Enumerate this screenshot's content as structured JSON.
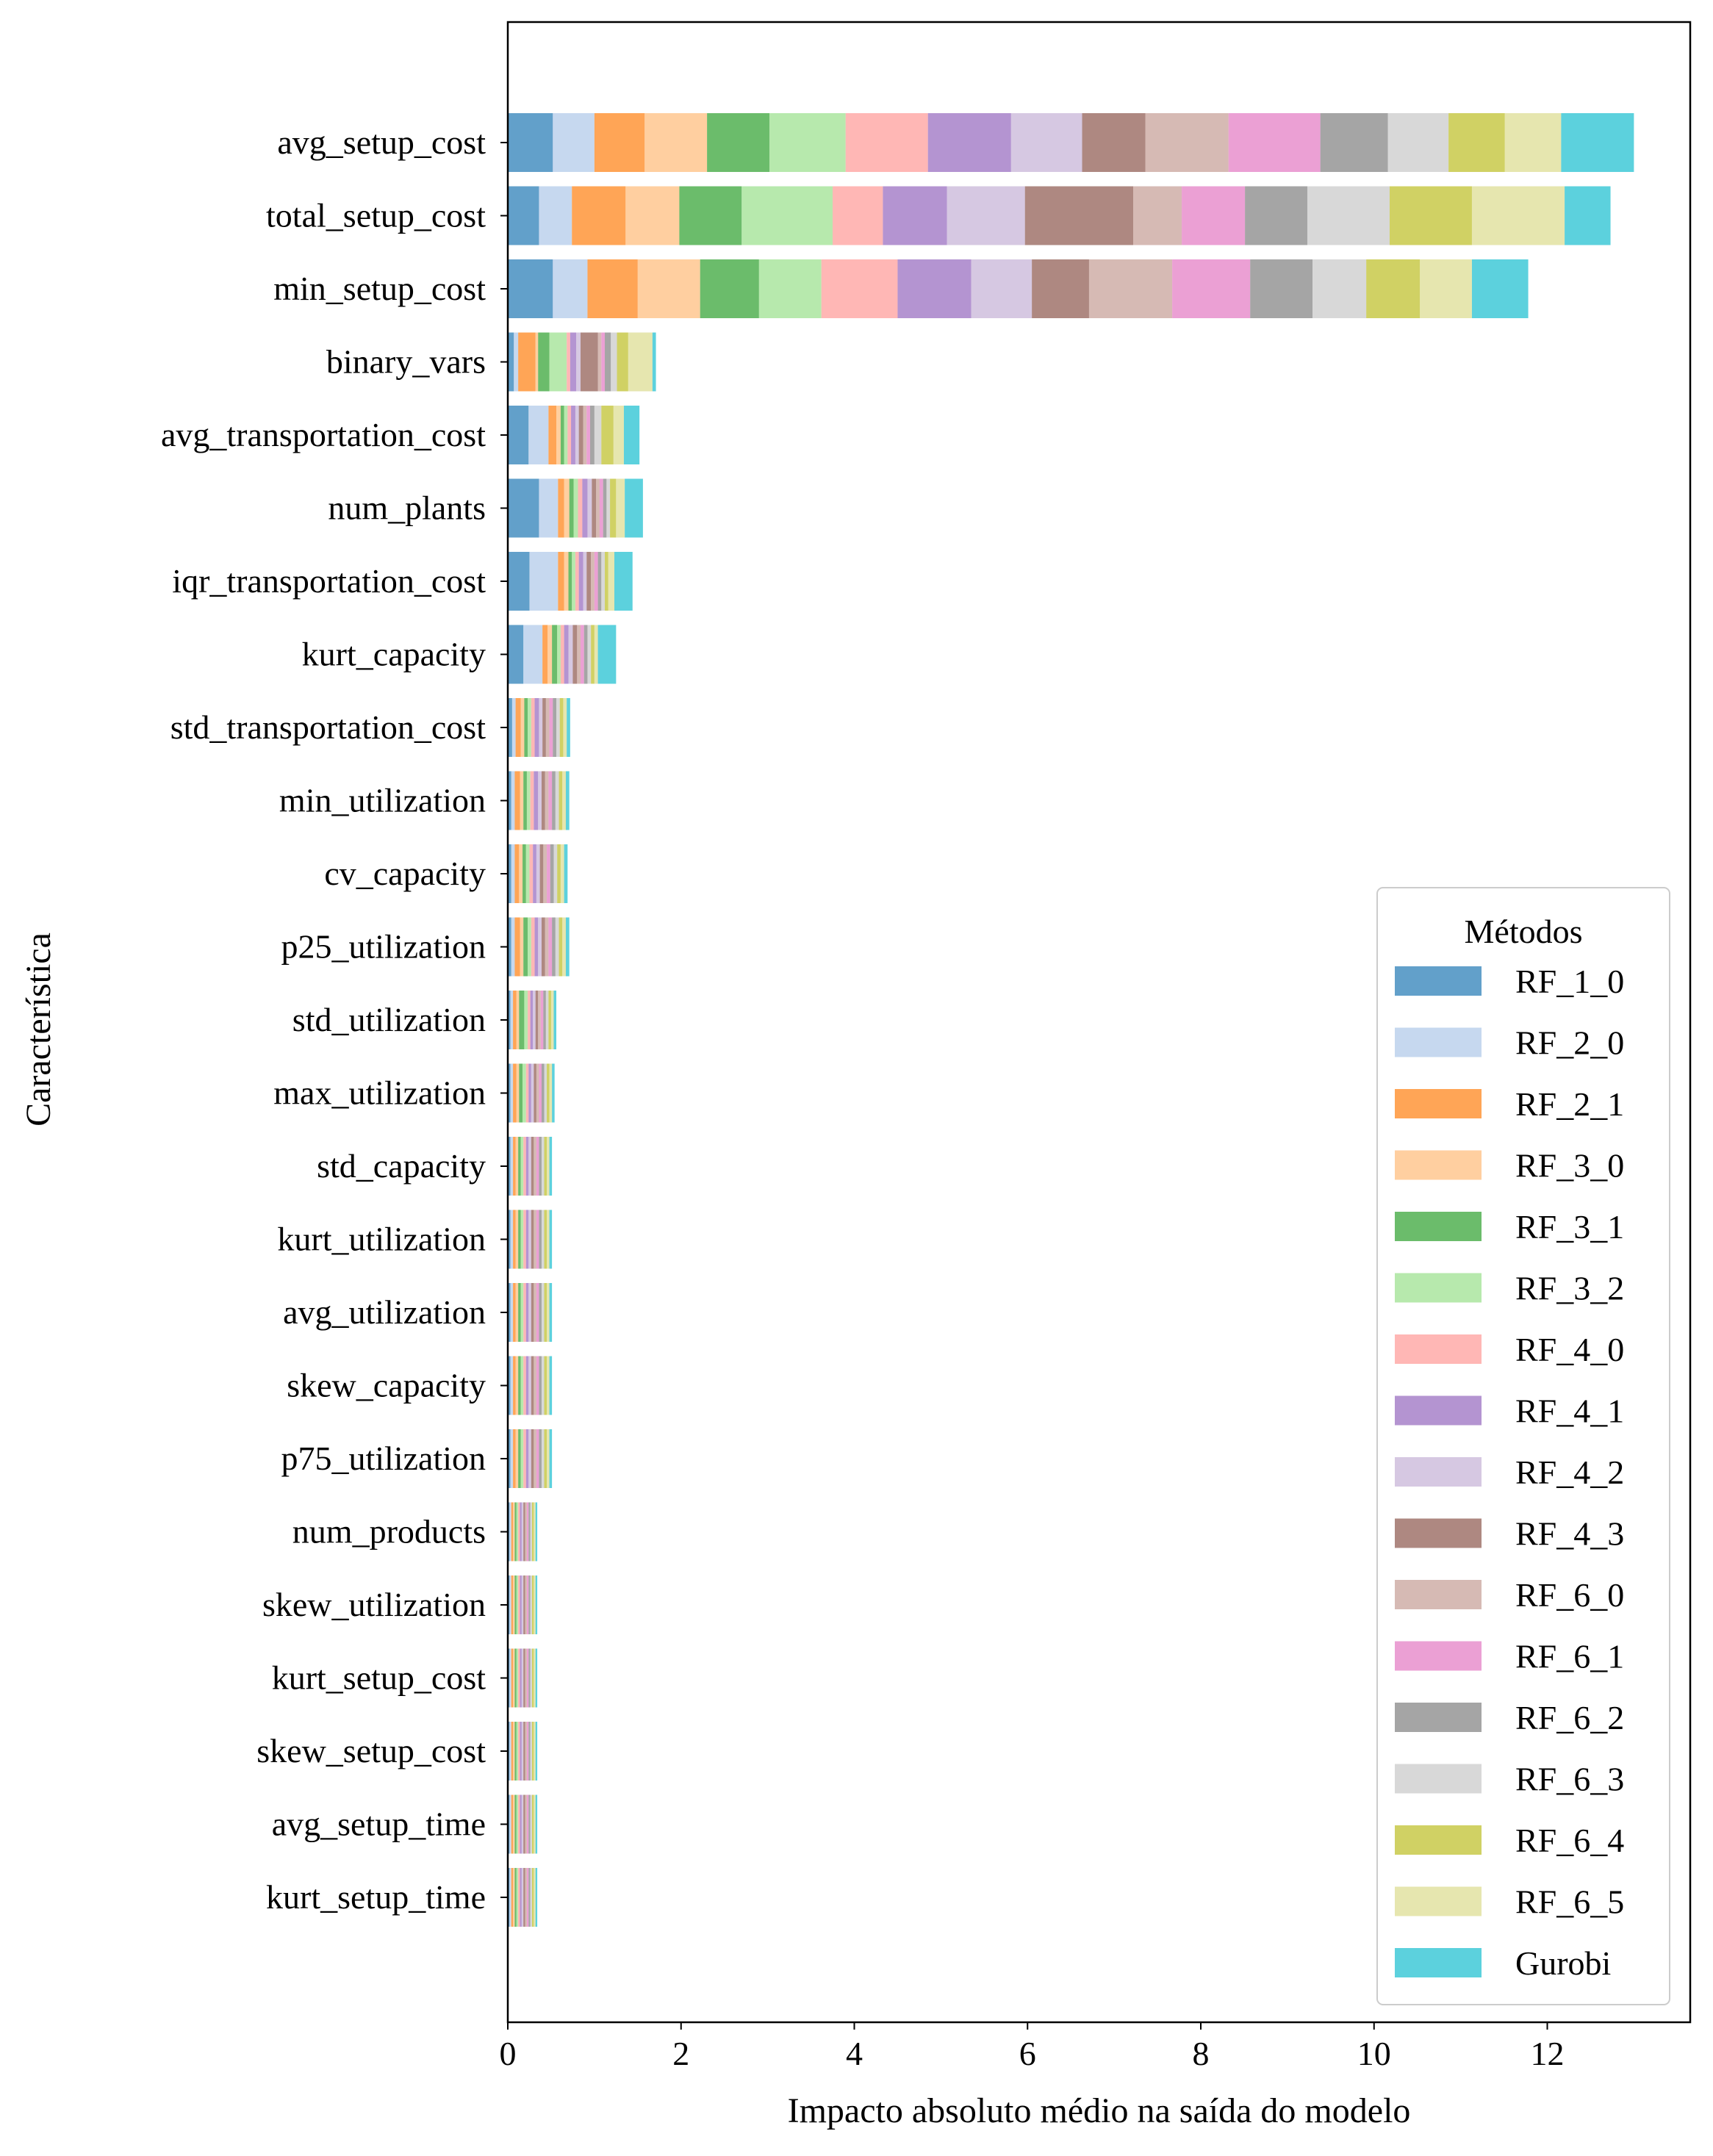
{
  "chart_data": {
    "type": "bar",
    "orientation": "horizontal",
    "stacked": true,
    "xlabel": "Impacto absoluto médio na saída do modelo",
    "ylabel": "Característica",
    "xlim": [
      0,
      13.65
    ],
    "xticks": [
      0,
      2,
      4,
      6,
      8,
      10,
      12
    ],
    "grid": false,
    "legend": {
      "title": "Métodos",
      "position": "lower-right"
    },
    "categories": [
      "avg_setup_cost",
      "total_setup_cost",
      "min_setup_cost",
      "binary_vars",
      "avg_transportation_cost",
      "num_plants",
      "iqr_transportation_cost",
      "kurt_capacity",
      "std_transportation_cost",
      "min_utilization",
      "cv_capacity",
      "p25_utilization",
      "std_utilization",
      "max_utilization",
      "std_capacity",
      "kurt_utilization",
      "avg_utilization",
      "skew_capacity",
      "p75_utilization",
      "num_products",
      "skew_utilization",
      "kurt_setup_cost",
      "skew_setup_cost",
      "avg_setup_time",
      "kurt_setup_time"
    ],
    "series": [
      {
        "name": "RF_1_0",
        "color": "#1f77b4",
        "values": [
          0.52,
          0.36,
          0.52,
          0.07,
          0.24,
          0.36,
          0.25,
          0.18,
          0.05,
          0.04,
          0.04,
          0.04,
          0.03,
          0.03,
          0.03,
          0.03,
          0.03,
          0.03,
          0.03,
          0.02,
          0.02,
          0.02,
          0.02,
          0.02,
          0.02
        ]
      },
      {
        "name": "RF_2_0",
        "color": "#aec7e8",
        "values": [
          0.48,
          0.38,
          0.4,
          0.05,
          0.23,
          0.22,
          0.33,
          0.22,
          0.04,
          0.04,
          0.04,
          0.04,
          0.03,
          0.03,
          0.03,
          0.03,
          0.03,
          0.03,
          0.03,
          0.02,
          0.02,
          0.02,
          0.02,
          0.02,
          0.02
        ]
      },
      {
        "name": "RF_2_1",
        "color": "#ff7f0e",
        "values": [
          0.58,
          0.62,
          0.58,
          0.2,
          0.09,
          0.07,
          0.07,
          0.06,
          0.06,
          0.06,
          0.05,
          0.06,
          0.04,
          0.04,
          0.03,
          0.03,
          0.03,
          0.03,
          0.03,
          0.02,
          0.02,
          0.02,
          0.02,
          0.02,
          0.02
        ]
      },
      {
        "name": "RF_3_0",
        "color": "#ffbb78",
        "values": [
          0.72,
          0.62,
          0.72,
          0.03,
          0.05,
          0.06,
          0.05,
          0.05,
          0.04,
          0.04,
          0.04,
          0.04,
          0.03,
          0.03,
          0.03,
          0.03,
          0.03,
          0.03,
          0.03,
          0.02,
          0.02,
          0.02,
          0.02,
          0.02,
          0.02
        ]
      },
      {
        "name": "RF_3_1",
        "color": "#2ca02c",
        "values": [
          0.72,
          0.72,
          0.68,
          0.13,
          0.04,
          0.05,
          0.04,
          0.06,
          0.04,
          0.04,
          0.04,
          0.05,
          0.06,
          0.04,
          0.03,
          0.03,
          0.03,
          0.03,
          0.03,
          0.02,
          0.02,
          0.02,
          0.02,
          0.02,
          0.02
        ]
      },
      {
        "name": "RF_3_2",
        "color": "#98df8a",
        "values": [
          0.88,
          1.05,
          0.72,
          0.2,
          0.04,
          0.05,
          0.04,
          0.04,
          0.04,
          0.04,
          0.04,
          0.04,
          0.04,
          0.04,
          0.03,
          0.03,
          0.03,
          0.03,
          0.03,
          0.02,
          0.02,
          0.02,
          0.02,
          0.02,
          0.02
        ]
      },
      {
        "name": "RF_4_0",
        "color": "#ff9896",
        "values": [
          0.95,
          0.58,
          0.88,
          0.04,
          0.04,
          0.05,
          0.04,
          0.04,
          0.04,
          0.04,
          0.04,
          0.04,
          0.03,
          0.03,
          0.03,
          0.03,
          0.03,
          0.03,
          0.03,
          0.02,
          0.02,
          0.02,
          0.02,
          0.02,
          0.02
        ]
      },
      {
        "name": "RF_4_1",
        "color": "#9467bd",
        "values": [
          0.96,
          0.74,
          0.85,
          0.07,
          0.05,
          0.06,
          0.05,
          0.05,
          0.05,
          0.05,
          0.04,
          0.04,
          0.03,
          0.03,
          0.03,
          0.03,
          0.03,
          0.03,
          0.03,
          0.02,
          0.02,
          0.02,
          0.02,
          0.02,
          0.02
        ]
      },
      {
        "name": "RF_4_2",
        "color": "#c5b0d5",
        "values": [
          0.82,
          0.9,
          0.7,
          0.05,
          0.04,
          0.05,
          0.04,
          0.05,
          0.04,
          0.04,
          0.04,
          0.04,
          0.03,
          0.03,
          0.03,
          0.03,
          0.03,
          0.03,
          0.03,
          0.02,
          0.02,
          0.02,
          0.02,
          0.02,
          0.02
        ]
      },
      {
        "name": "RF_4_3",
        "color": "#8c564b",
        "values": [
          0.73,
          1.25,
          0.66,
          0.2,
          0.05,
          0.05,
          0.05,
          0.05,
          0.04,
          0.04,
          0.04,
          0.04,
          0.03,
          0.03,
          0.03,
          0.03,
          0.03,
          0.03,
          0.03,
          0.02,
          0.02,
          0.02,
          0.02,
          0.02,
          0.02
        ]
      },
      {
        "name": "RF_6_0",
        "color": "#c49c94",
        "values": [
          0.96,
          0.56,
          0.96,
          0.04,
          0.04,
          0.04,
          0.04,
          0.04,
          0.04,
          0.04,
          0.04,
          0.04,
          0.03,
          0.03,
          0.03,
          0.03,
          0.03,
          0.03,
          0.03,
          0.02,
          0.02,
          0.02,
          0.02,
          0.02,
          0.02
        ]
      },
      {
        "name": "RF_6_1",
        "color": "#e377c2",
        "values": [
          1.06,
          0.73,
          0.9,
          0.04,
          0.04,
          0.04,
          0.04,
          0.04,
          0.04,
          0.04,
          0.04,
          0.04,
          0.03,
          0.03,
          0.03,
          0.03,
          0.03,
          0.03,
          0.03,
          0.02,
          0.02,
          0.02,
          0.02,
          0.02,
          0.02
        ]
      },
      {
        "name": "RF_6_2",
        "color": "#7f7f7f",
        "values": [
          0.78,
          0.72,
          0.72,
          0.07,
          0.05,
          0.04,
          0.04,
          0.04,
          0.04,
          0.04,
          0.04,
          0.04,
          0.03,
          0.03,
          0.03,
          0.03,
          0.03,
          0.03,
          0.03,
          0.02,
          0.02,
          0.02,
          0.02,
          0.02,
          0.02
        ]
      },
      {
        "name": "RF_6_3",
        "color": "#c7c7c7",
        "values": [
          0.7,
          0.95,
          0.62,
          0.07,
          0.08,
          0.04,
          0.04,
          0.04,
          0.04,
          0.04,
          0.04,
          0.04,
          0.03,
          0.03,
          0.03,
          0.03,
          0.03,
          0.03,
          0.03,
          0.02,
          0.02,
          0.02,
          0.02,
          0.02,
          0.02
        ]
      },
      {
        "name": "RF_6_4",
        "color": "#bcbd22",
        "values": [
          0.65,
          0.95,
          0.62,
          0.13,
          0.14,
          0.07,
          0.04,
          0.04,
          0.04,
          0.04,
          0.04,
          0.04,
          0.03,
          0.03,
          0.03,
          0.03,
          0.03,
          0.03,
          0.03,
          0.02,
          0.02,
          0.02,
          0.02,
          0.02,
          0.02
        ]
      },
      {
        "name": "RF_6_5",
        "color": "#dbdb8d",
        "values": [
          0.65,
          1.07,
          0.6,
          0.28,
          0.12,
          0.1,
          0.07,
          0.04,
          0.04,
          0.04,
          0.04,
          0.04,
          0.03,
          0.03,
          0.03,
          0.03,
          0.03,
          0.03,
          0.03,
          0.02,
          0.02,
          0.02,
          0.02,
          0.02,
          0.02
        ]
      },
      {
        "name": "Gurobi",
        "color": "#17becf",
        "values": [
          0.84,
          0.53,
          0.65,
          0.04,
          0.18,
          0.21,
          0.21,
          0.21,
          0.04,
          0.04,
          0.04,
          0.04,
          0.03,
          0.03,
          0.03,
          0.03,
          0.03,
          0.03,
          0.03,
          0.02,
          0.02,
          0.02,
          0.02,
          0.02,
          0.02
        ]
      }
    ]
  }
}
